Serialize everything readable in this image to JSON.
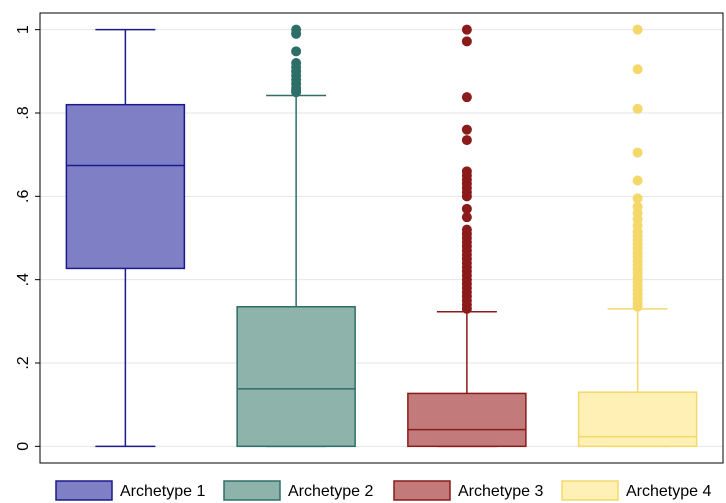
{
  "chart_data": {
    "type": "boxplot",
    "title": "",
    "xlabel": "",
    "ylabel": "",
    "ylim": [
      -0.04,
      1.04
    ],
    "yticks": [
      0,
      0.2,
      0.4,
      0.6,
      0.8,
      1
    ],
    "ytick_labels": [
      "0",
      ".2",
      ".4",
      ".6",
      ".8",
      "1"
    ],
    "grid": true,
    "legend_position": "bottom",
    "series": [
      {
        "name": "Archetype 1",
        "color": "#7f7fc5",
        "edge_color": "#1a1a8c",
        "min": 0.0,
        "q1": 0.427,
        "median": 0.674,
        "q3": 0.82,
        "max": 1.0,
        "outliers": []
      },
      {
        "name": "Archetype 2",
        "color": "#8eb3ab",
        "edge_color": "#2d6e68",
        "min": 0.0,
        "q1": 0.0,
        "median": 0.138,
        "q3": 0.335,
        "max": 0.842,
        "outliers": [
          0.85,
          0.855,
          0.86,
          0.87,
          0.88,
          0.89,
          0.9,
          0.91,
          0.92,
          0.948,
          0.99,
          1.0
        ]
      },
      {
        "name": "Archetype 3",
        "color": "#c27b7a",
        "edge_color": "#8b1a1a",
        "min": 0.0,
        "q1": 0.0,
        "median": 0.04,
        "q3": 0.127,
        "max": 0.323,
        "outliers": [
          0.33,
          0.34,
          0.35,
          0.36,
          0.37,
          0.38,
          0.39,
          0.4,
          0.41,
          0.42,
          0.43,
          0.44,
          0.45,
          0.46,
          0.47,
          0.48,
          0.49,
          0.5,
          0.51,
          0.52,
          0.55,
          0.57,
          0.6,
          0.61,
          0.62,
          0.63,
          0.64,
          0.65,
          0.66,
          0.735,
          0.76,
          0.838,
          0.972,
          1.0
        ]
      },
      {
        "name": "Archetype 4",
        "color": "#fff0b5",
        "edge_color": "#f4d86a",
        "min": 0.0,
        "q1": 0.0,
        "median": 0.023,
        "q3": 0.13,
        "max": 0.33,
        "outliers": [
          0.335,
          0.345,
          0.355,
          0.365,
          0.375,
          0.385,
          0.395,
          0.405,
          0.415,
          0.425,
          0.435,
          0.445,
          0.455,
          0.465,
          0.475,
          0.485,
          0.495,
          0.505,
          0.515,
          0.53,
          0.545,
          0.56,
          0.575,
          0.595,
          0.638,
          0.705,
          0.81,
          0.905,
          1.0
        ]
      }
    ]
  }
}
